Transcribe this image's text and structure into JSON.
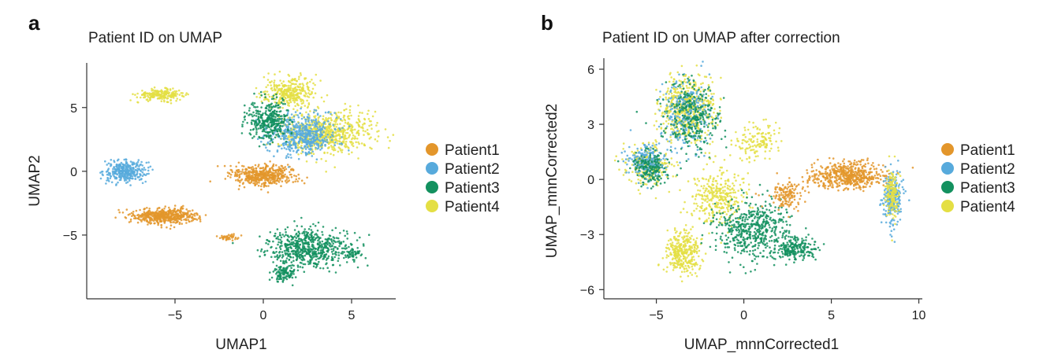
{
  "colors": {
    "Patient1": "#e3962b",
    "Patient2": "#57aadc",
    "Patient3": "#13915f",
    "Patient4": "#e4df44"
  },
  "chart_data": [
    {
      "panel": "a",
      "type": "scatter",
      "title": "Patient ID on UMAP",
      "xlabel": "UMAP1",
      "ylabel": "UMAP2",
      "xlim": [
        -10,
        7.5
      ],
      "ylim": [
        -10,
        8.5
      ],
      "xticks": [
        -5,
        0,
        5
      ],
      "xtick_labels": [
        "−5",
        "0",
        "5"
      ],
      "yticks": [
        -5,
        0,
        5
      ],
      "ytick_labels": [
        "−5",
        "0",
        "5"
      ],
      "legend": [
        "Patient1",
        "Patient2",
        "Patient3",
        "Patient4"
      ],
      "legend_position": "right",
      "clusters": [
        {
          "series": "Patient4",
          "cx": -5.8,
          "cy": 6.0,
          "sx": 1.1,
          "sy": 0.35,
          "n": 220
        },
        {
          "series": "Patient2",
          "cx": -7.8,
          "cy": 0.0,
          "sx": 1.0,
          "sy": 0.7,
          "n": 320
        },
        {
          "series": "Patient1",
          "cx": -5.5,
          "cy": -3.5,
          "sx": 1.5,
          "sy": 0.5,
          "n": 520
        },
        {
          "series": "Patient1",
          "cx": 0.0,
          "cy": -0.3,
          "sx": 1.6,
          "sy": 0.7,
          "n": 460
        },
        {
          "series": "Patient1",
          "cx": -2.0,
          "cy": -5.2,
          "sx": 0.4,
          "sy": 0.2,
          "n": 40
        },
        {
          "series": "Patient3",
          "cx": 2.5,
          "cy": -6.0,
          "sx": 1.9,
          "sy": 1.2,
          "n": 620
        },
        {
          "series": "Patient3",
          "cx": 1.2,
          "cy": -8.0,
          "sx": 0.5,
          "sy": 0.6,
          "n": 110
        },
        {
          "series": "Patient3",
          "cx": 5.0,
          "cy": -6.5,
          "sx": 0.4,
          "sy": 0.3,
          "n": 50
        },
        {
          "series": "Patient4",
          "cx": 1.5,
          "cy": 6.2,
          "sx": 1.2,
          "sy": 1.0,
          "n": 340
        },
        {
          "series": "Patient4",
          "cx": 3.5,
          "cy": 3.0,
          "sx": 2.2,
          "sy": 1.3,
          "n": 700
        },
        {
          "series": "Patient2",
          "cx": 2.3,
          "cy": 2.8,
          "sx": 1.7,
          "sy": 1.3,
          "n": 520
        },
        {
          "series": "Patient3",
          "cx": 0.3,
          "cy": 4.0,
          "sx": 0.9,
          "sy": 1.3,
          "n": 360
        }
      ]
    },
    {
      "panel": "b",
      "type": "scatter",
      "title": "Patient ID on UMAP after correction",
      "xlabel": "UMAP_mnnCorrected1",
      "ylabel": "UMAP_mnnCorrected2",
      "xlim": [
        -8,
        10.2
      ],
      "ylim": [
        -6.5,
        6.6
      ],
      "xticks": [
        -5,
        0,
        5,
        10
      ],
      "xtick_labels": [
        "−5",
        "0",
        "5",
        "10"
      ],
      "yticks": [
        -6,
        -3,
        0,
        3,
        6
      ],
      "ytick_labels": [
        "−6",
        "−3",
        "0",
        "3",
        "6"
      ],
      "legend": [
        "Patient1",
        "Patient2",
        "Patient3",
        "Patient4"
      ],
      "legend_position": "right",
      "clusters": [
        {
          "series": "Patient4",
          "cx": -3.2,
          "cy": 3.8,
          "sx": 1.3,
          "sy": 1.5,
          "n": 520
        },
        {
          "series": "Patient2",
          "cx": -3.3,
          "cy": 3.5,
          "sx": 1.2,
          "sy": 1.5,
          "n": 260
        },
        {
          "series": "Patient3",
          "cx": -3.0,
          "cy": 3.3,
          "sx": 1.3,
          "sy": 1.6,
          "n": 300
        },
        {
          "series": "Patient4",
          "cx": -5.5,
          "cy": 0.8,
          "sx": 1.0,
          "sy": 0.9,
          "n": 260
        },
        {
          "series": "Patient2",
          "cx": -5.6,
          "cy": 1.0,
          "sx": 0.9,
          "sy": 0.8,
          "n": 200
        },
        {
          "series": "Patient3",
          "cx": -5.3,
          "cy": 0.6,
          "sx": 0.9,
          "sy": 0.8,
          "n": 170
        },
        {
          "series": "Patient4",
          "cx": -3.5,
          "cy": -4.0,
          "sx": 0.8,
          "sy": 1.0,
          "n": 340
        },
        {
          "series": "Patient4",
          "cx": -1.5,
          "cy": -1.0,
          "sx": 1.4,
          "sy": 1.3,
          "n": 320
        },
        {
          "series": "Patient3",
          "cx": 0.5,
          "cy": -2.8,
          "sx": 1.8,
          "sy": 1.3,
          "n": 520
        },
        {
          "series": "Patient3",
          "cx": 3.0,
          "cy": -3.8,
          "sx": 0.9,
          "sy": 0.5,
          "n": 200
        },
        {
          "series": "Patient4",
          "cx": 0.8,
          "cy": 2.0,
          "sx": 1.2,
          "sy": 0.8,
          "n": 140
        },
        {
          "series": "Patient1",
          "cx": 6.0,
          "cy": 0.2,
          "sx": 1.7,
          "sy": 0.6,
          "n": 540
        },
        {
          "series": "Patient2",
          "cx": 8.5,
          "cy": -1.0,
          "sx": 0.5,
          "sy": 1.1,
          "n": 240
        },
        {
          "series": "Patient4",
          "cx": 8.5,
          "cy": -0.8,
          "sx": 0.35,
          "sy": 1.1,
          "n": 150
        },
        {
          "series": "Patient1",
          "cx": 2.5,
          "cy": -0.8,
          "sx": 0.8,
          "sy": 0.7,
          "n": 140
        }
      ]
    }
  ],
  "panel_a_label": "a",
  "panel_b_label": "b"
}
